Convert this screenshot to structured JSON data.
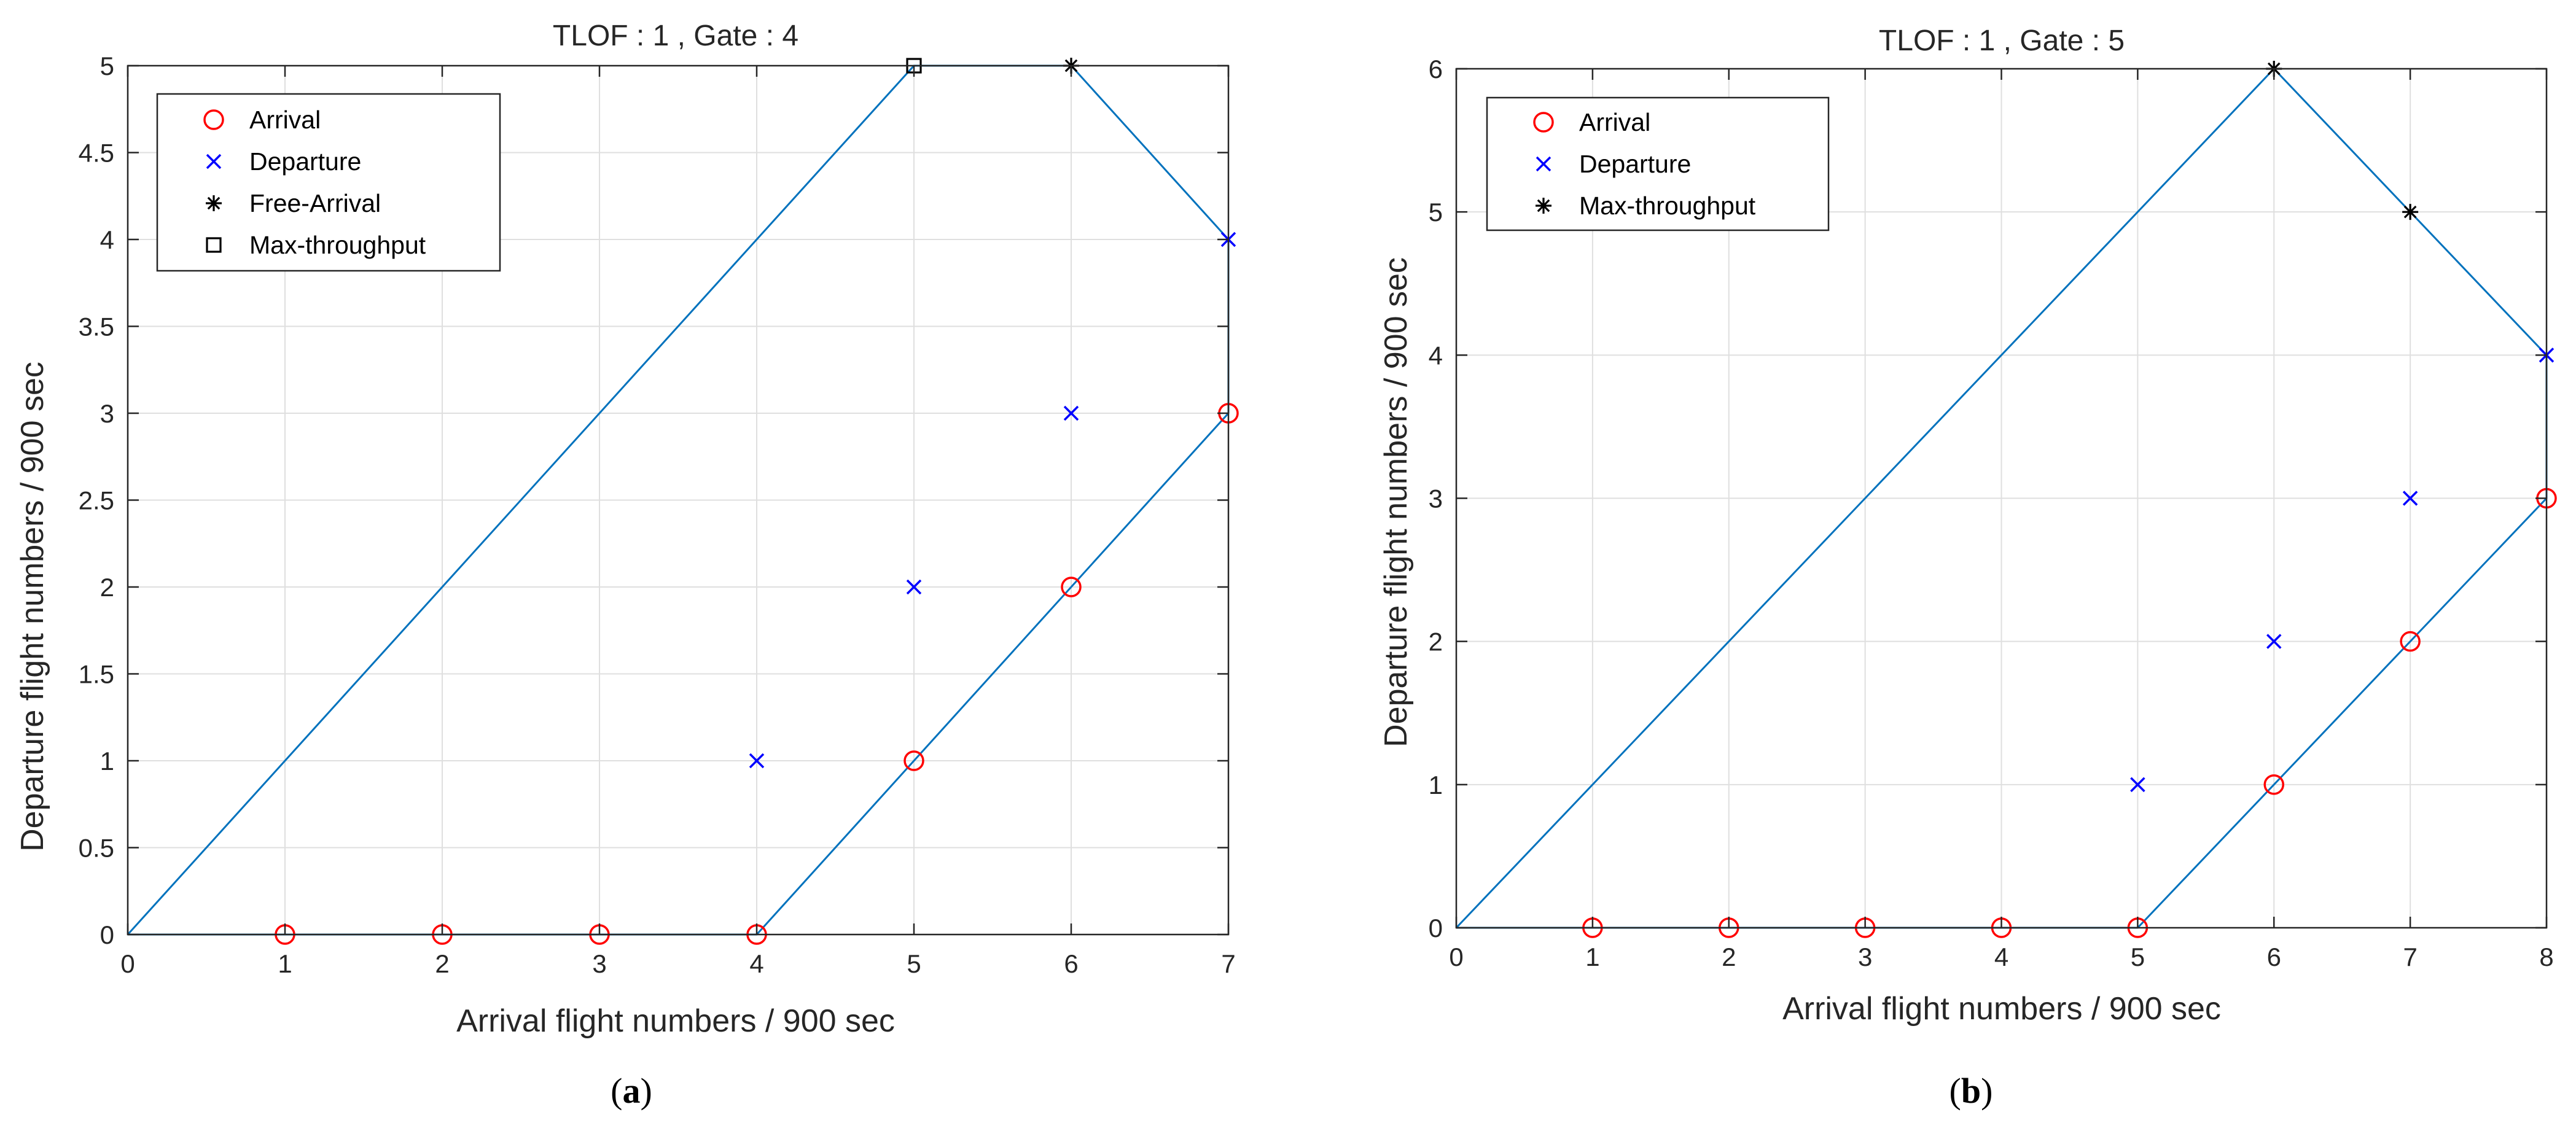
{
  "colors": {
    "hull": "#0072BD",
    "arrival": "#FF0000",
    "departure": "#0000FF",
    "black": "#000000",
    "grid": "#DFDFDF"
  },
  "chart_data": [
    {
      "type": "scatter",
      "title": "TLOF : 1 , Gate : 4",
      "xlabel": "Arrival flight numbers / 900 sec",
      "ylabel": "Departure flight numbers / 900 sec",
      "xlim": [
        0,
        7
      ],
      "ylim": [
        0,
        5
      ],
      "xticks": [
        0,
        1,
        2,
        3,
        4,
        5,
        6,
        7
      ],
      "yticks": [
        0,
        0.5,
        1,
        1.5,
        2,
        2.5,
        3,
        3.5,
        4,
        4.5,
        5
      ],
      "xtick_labels": [
        "0",
        "1",
        "2",
        "3",
        "4",
        "5",
        "6",
        "7"
      ],
      "ytick_labels": [
        "0",
        "0.5",
        "1",
        "1.5",
        "2",
        "2.5",
        "3",
        "3.5",
        "4",
        "4.5",
        "5"
      ],
      "grid": true,
      "legend": {
        "position": "top-left",
        "entries": [
          {
            "label": "Arrival",
            "marker": "circle"
          },
          {
            "label": "Departure",
            "marker": "x"
          },
          {
            "label": "Free-Arrival",
            "marker": "asterisk"
          },
          {
            "label": "Max-throughput",
            "marker": "square"
          }
        ]
      },
      "hull": {
        "x": [
          0,
          4,
          5,
          6,
          7,
          7,
          6,
          5,
          0
        ],
        "y": [
          0,
          0,
          1,
          2,
          3,
          4,
          5,
          5,
          0
        ]
      },
      "series": [
        {
          "name": "Arrival",
          "x": [
            1,
            2,
            3,
            4,
            5,
            6,
            7
          ],
          "y": [
            0,
            0,
            0,
            0,
            1,
            2,
            3
          ]
        },
        {
          "name": "Departure",
          "x": [
            4,
            5,
            6,
            7
          ],
          "y": [
            1,
            2,
            3,
            4
          ]
        },
        {
          "name": "Free-Arrival",
          "x": [
            6
          ],
          "y": [
            5
          ]
        },
        {
          "name": "Max-throughput",
          "x": [
            5
          ],
          "y": [
            5
          ]
        }
      ],
      "caption_letter": "a"
    },
    {
      "type": "scatter",
      "title": "TLOF : 1 , Gate : 5",
      "xlabel": "Arrival flight numbers / 900 sec",
      "ylabel": "Departure flight numbers / 900 sec",
      "xlim": [
        0,
        8
      ],
      "ylim": [
        0,
        6
      ],
      "xticks": [
        0,
        1,
        2,
        3,
        4,
        5,
        6,
        7,
        8
      ],
      "yticks": [
        0,
        1,
        2,
        3,
        4,
        5,
        6
      ],
      "xtick_labels": [
        "0",
        "1",
        "2",
        "3",
        "4",
        "5",
        "6",
        "7",
        "8"
      ],
      "ytick_labels": [
        "0",
        "1",
        "2",
        "3",
        "4",
        "5",
        "6"
      ],
      "grid": true,
      "legend": {
        "position": "top-left",
        "entries": [
          {
            "label": "Arrival",
            "marker": "circle"
          },
          {
            "label": "Departure",
            "marker": "x"
          },
          {
            "label": "Max-throughput",
            "marker": "asterisk"
          }
        ]
      },
      "hull": {
        "x": [
          0,
          5,
          6,
          7,
          8,
          8,
          7,
          6,
          0
        ],
        "y": [
          0,
          0,
          1,
          2,
          3,
          4,
          5,
          6,
          0
        ]
      },
      "series": [
        {
          "name": "Arrival",
          "x": [
            1,
            2,
            3,
            4,
            5,
            6,
            7,
            8
          ],
          "y": [
            0,
            0,
            0,
            0,
            0,
            1,
            2,
            3
          ]
        },
        {
          "name": "Departure",
          "x": [
            5,
            6,
            7,
            8
          ],
          "y": [
            1,
            2,
            3,
            4
          ]
        },
        {
          "name": "Max-throughput",
          "x": [
            6,
            7
          ],
          "y": [
            6,
            5
          ]
        }
      ],
      "caption_letter": "b"
    }
  ]
}
